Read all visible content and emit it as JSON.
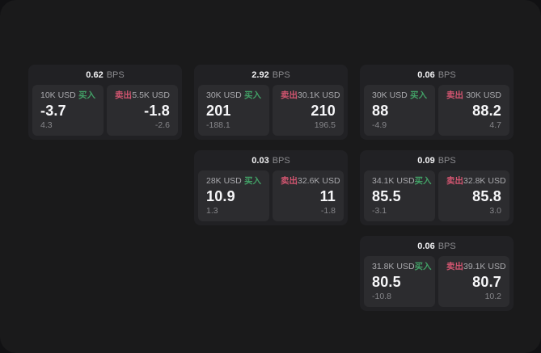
{
  "labels": {
    "buy": "买入",
    "sell": "卖出",
    "bps_unit": "BPS"
  },
  "colors": {
    "buy_green": "#42a066",
    "sell_red": "#d25570",
    "panel_bg": "#1a1a1b",
    "card_bg": "#212124",
    "cell_bg": "#2c2c2f"
  },
  "cards": [
    {
      "bps": "0.62",
      "buy": {
        "size": "10K USD",
        "price": "-3.7",
        "delta": "4.3"
      },
      "sell": {
        "size": "5.5K USD",
        "price": "-1.8",
        "delta": "-2.6"
      }
    },
    {
      "bps": "2.92",
      "buy": {
        "size": "30K USD",
        "price": "201",
        "delta": "-188.1"
      },
      "sell": {
        "size": "30.1K USD",
        "price": "210",
        "delta": "196.5"
      }
    },
    {
      "bps": "0.06",
      "buy": {
        "size": "30K USD",
        "price": "88",
        "delta": "-4.9"
      },
      "sell": {
        "size": "30K USD",
        "price": "88.2",
        "delta": "4.7"
      }
    },
    {
      "bps": "0.03",
      "buy": {
        "size": "28K USD",
        "price": "10.9",
        "delta": "1.3"
      },
      "sell": {
        "size": "32.6K USD",
        "price": "11",
        "delta": "-1.8"
      }
    },
    {
      "bps": "0.09",
      "buy": {
        "size": "34.1K USD",
        "price": "85.5",
        "delta": "-3.1"
      },
      "sell": {
        "size": "32.8K USD",
        "price": "85.8",
        "delta": "3.0"
      }
    },
    {
      "bps": "0.06",
      "buy": {
        "size": "31.8K USD",
        "price": "80.5",
        "delta": "-10.8"
      },
      "sell": {
        "size": "39.1K USD",
        "price": "80.7",
        "delta": "10.2"
      }
    }
  ]
}
